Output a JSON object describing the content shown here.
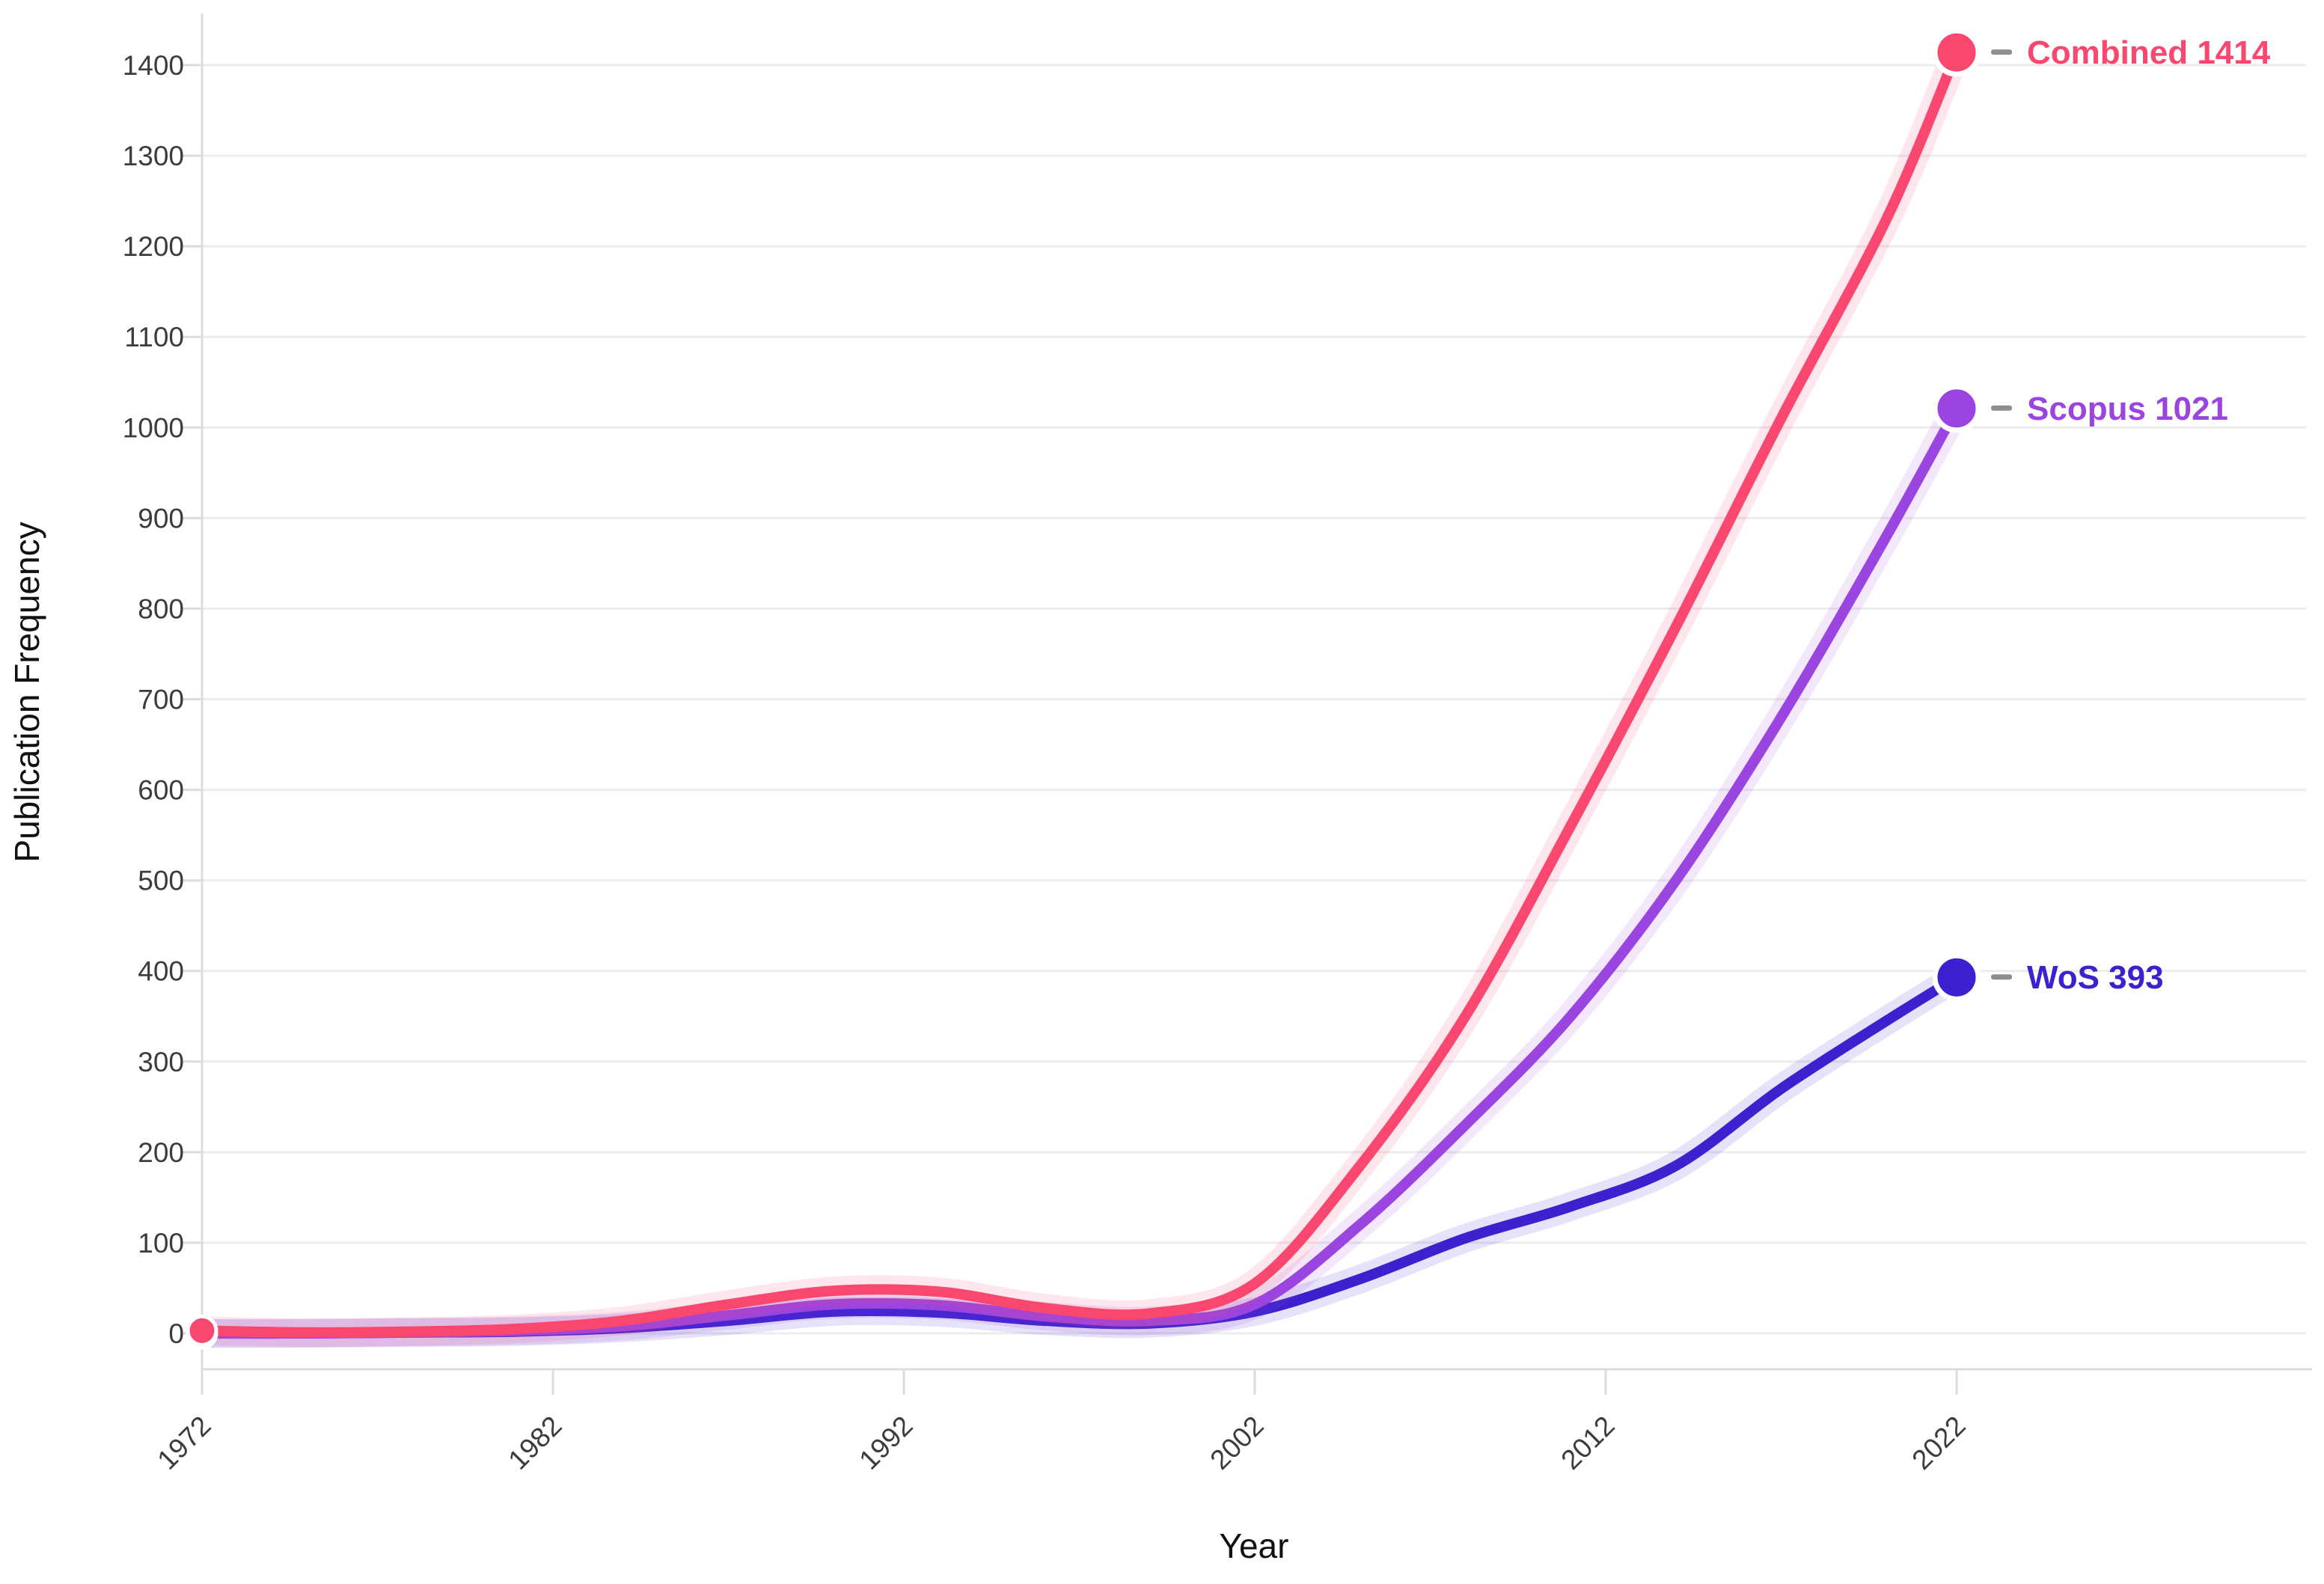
{
  "chart_data": {
    "type": "line",
    "title": "",
    "xlabel": "Year",
    "ylabel": "Publication Frequency",
    "x_ticks": [
      1972,
      1982,
      1992,
      2002,
      2012,
      2022
    ],
    "x_tick_rotation": -45,
    "y_ticks": [
      0,
      100,
      200,
      300,
      400,
      500,
      600,
      700,
      800,
      900,
      1000,
      1100,
      1200,
      1300,
      1400
    ],
    "xlim": [
      1972,
      2022
    ],
    "ylim": [
      -40,
      1455
    ],
    "grid": "horizontal",
    "legend_position": "end-of-line-labels",
    "series": [
      {
        "name": "WoS",
        "end_label": "WoS 393",
        "final_value": 393,
        "color": "#3B22CE",
        "x": [
          1972,
          1975,
          1978,
          1981,
          1984,
          1987,
          1990,
          1993,
          1996,
          1999,
          2002,
          2005,
          2008,
          2011,
          2014,
          2017,
          2020,
          2022
        ],
        "values": [
          0,
          0,
          1,
          2,
          6,
          14,
          24,
          23,
          14,
          11,
          24,
          60,
          105,
          140,
          185,
          270,
          345,
          393
        ]
      },
      {
        "name": "Scopus",
        "end_label": "Scopus 1021",
        "final_value": 1021,
        "color": "#9B45E0",
        "x": [
          1972,
          1975,
          1978,
          1981,
          1984,
          1987,
          1990,
          1993,
          1996,
          1999,
          2002,
          2005,
          2008,
          2011,
          2014,
          2017,
          2020,
          2022
        ],
        "values": [
          0,
          0,
          1,
          3,
          8,
          20,
          32,
          31,
          19,
          14,
          32,
          120,
          230,
          350,
          500,
          680,
          880,
          1021
        ]
      },
      {
        "name": "Combined",
        "end_label": "Combined 1414",
        "final_value": 1414,
        "color": "#F9476F",
        "x": [
          1972,
          1975,
          1978,
          1981,
          1984,
          1987,
          1990,
          1993,
          1996,
          1999,
          2002,
          2005,
          2008,
          2011,
          2014,
          2017,
          2020,
          2022
        ],
        "values": [
          3,
          1,
          2,
          5,
          14,
          32,
          47,
          46,
          28,
          22,
          55,
          185,
          350,
          560,
          780,
          1010,
          1230,
          1414
        ]
      }
    ]
  },
  "colors": {
    "grid_line": "#ececec",
    "axis_line": "#dcdcdc",
    "tick_mark": "#dcdcdc",
    "tick_text": "#3c3c3c",
    "axis_title_text": "#111111",
    "label_dash": "#7a7a7a",
    "background": "#ffffff"
  }
}
